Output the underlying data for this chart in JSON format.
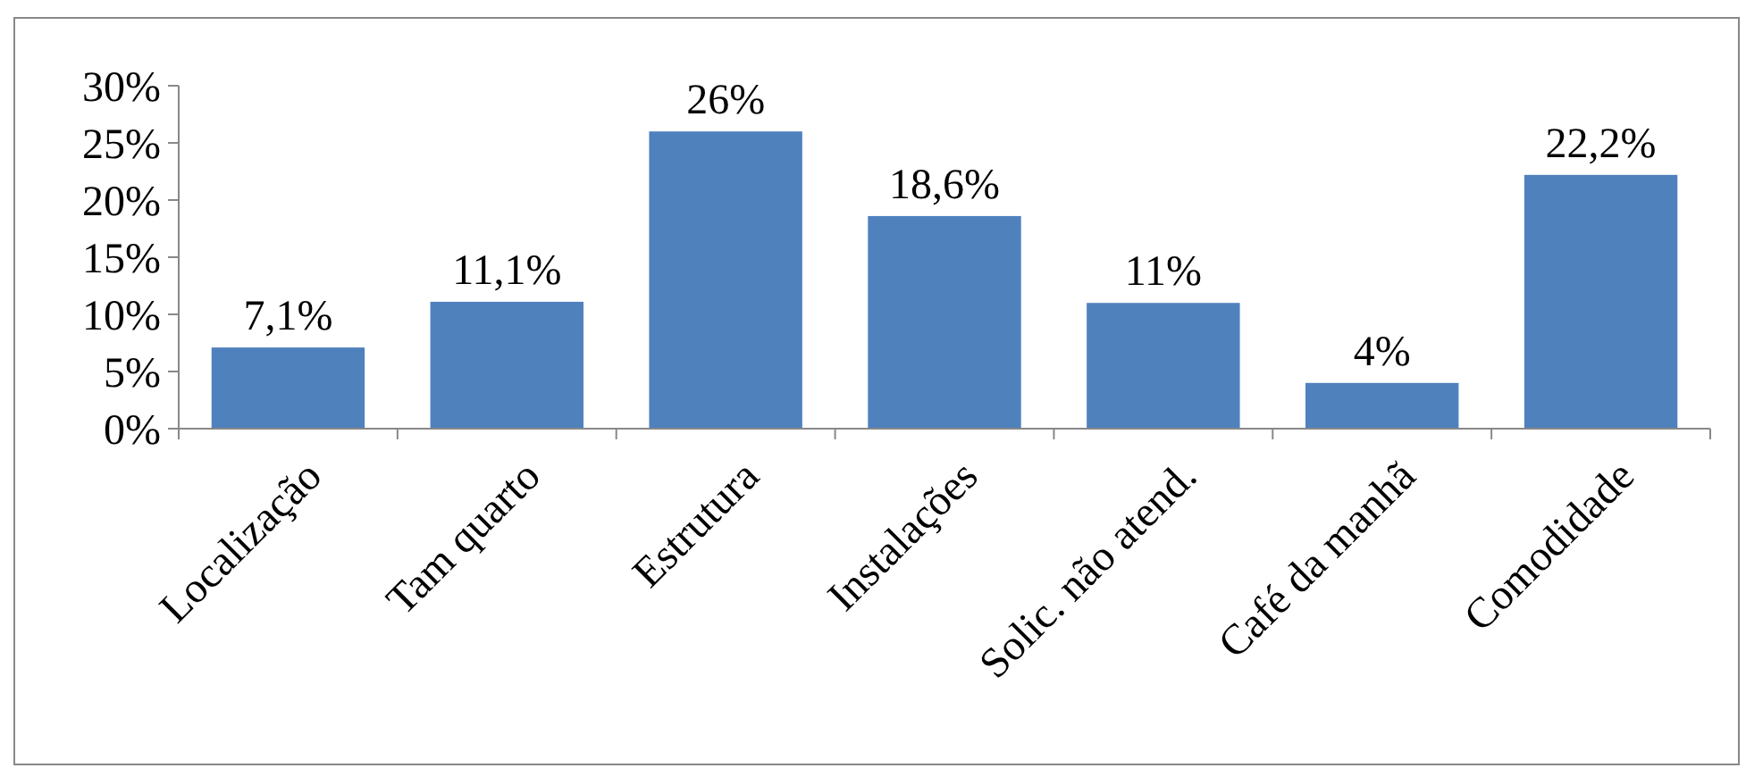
{
  "chart_data": {
    "type": "bar",
    "categories": [
      "Localização",
      "Tam quarto",
      "Estrutura",
      "Instalações",
      "Solic. não atend.",
      "Café da manhã",
      "Comodidade"
    ],
    "values": [
      7.1,
      11.1,
      26,
      18.6,
      11,
      4,
      22.2
    ],
    "value_labels": [
      "7,1%",
      "11,1%",
      "26%",
      "18,6%",
      "11%",
      "4%",
      "22,2%"
    ],
    "color": "#4f81bd",
    "ylim": [
      0,
      30
    ],
    "yticks": [
      {
        "value": 0,
        "label": "0%"
      },
      {
        "value": 5,
        "label": "5%"
      },
      {
        "value": 10,
        "label": "10%"
      },
      {
        "value": 15,
        "label": "15%"
      },
      {
        "value": 20,
        "label": "20%"
      },
      {
        "value": 25,
        "label": "25%"
      },
      {
        "value": 30,
        "label": "30%"
      }
    ],
    "grid": false
  }
}
